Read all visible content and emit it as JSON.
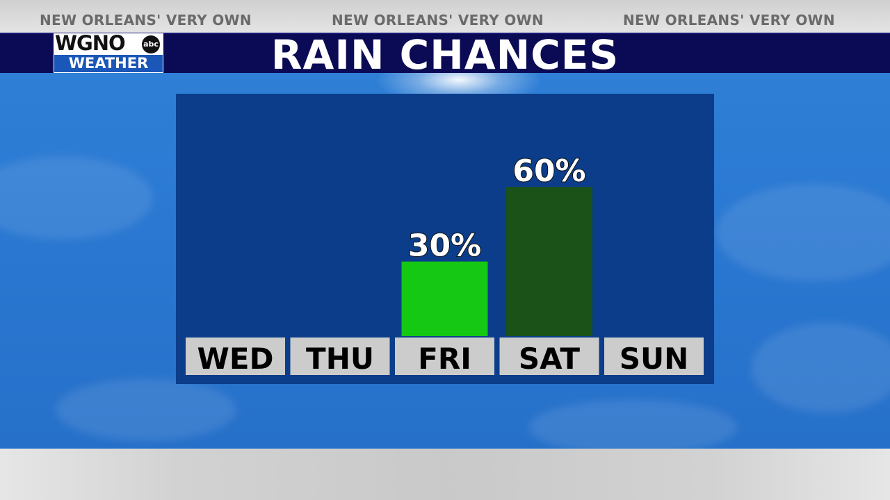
{
  "slogans": [
    "NEW ORLEANS' VERY OWN",
    "NEW ORLEANS' VERY OWN",
    "NEW ORLEANS' VERY OWN"
  ],
  "logo": {
    "call_letters": "WGNO",
    "network": "abc",
    "subtitle": "WEATHER"
  },
  "title": "RAIN CHANCES",
  "colors": {
    "title_bar": "#0b0b55",
    "panel": "#0b3d8a",
    "label_box": "#cccccc"
  },
  "chart_data": {
    "type": "bar",
    "title": "RAIN CHANCES",
    "xlabel": "",
    "ylabel": "",
    "ylim": [
      0,
      100
    ],
    "grid": false,
    "legend": "none",
    "categories": [
      "WED",
      "THU",
      "FRI",
      "SAT",
      "SUN"
    ],
    "values": [
      null,
      null,
      30,
      60,
      null
    ],
    "data_labels": [
      "",
      "",
      "30%",
      "60%",
      ""
    ],
    "bar_colors": [
      "#14c814",
      "#14c814",
      "#14c814",
      "#1a5218",
      "#14c814"
    ]
  }
}
